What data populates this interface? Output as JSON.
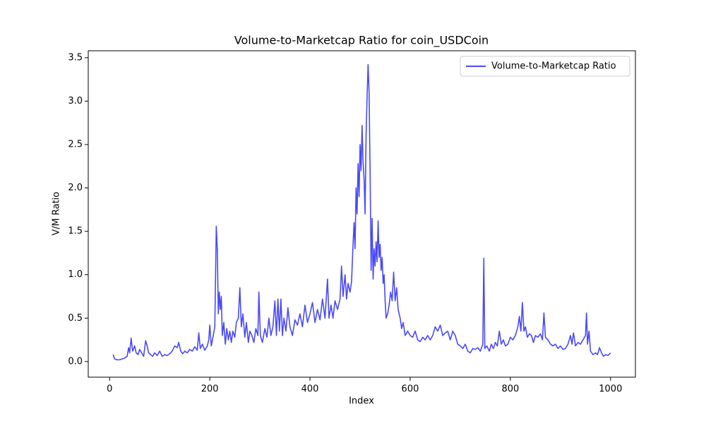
{
  "chart_data": {
    "type": "line",
    "title": "Volume-to-Marketcap Ratio for coin_USDCoin",
    "xlabel": "Index",
    "ylabel": "V/M Ratio",
    "xlim": [
      -42.6,
      1049.6
    ],
    "ylim": [
      -0.18,
      3.58
    ],
    "xticks": [
      0,
      200,
      400,
      600,
      800,
      1000
    ],
    "yticks": [
      {
        "value": 0,
        "label": "0.0"
      },
      0.5,
      {
        "value": 1,
        "label": "1.0"
      },
      1.5,
      {
        "value": 2,
        "label": "2.0"
      },
      2.5,
      {
        "value": 3,
        "label": "3.0"
      },
      3.5
    ],
    "legend": "upper right",
    "grid": false,
    "x": [
      7,
      10,
      15,
      20,
      25,
      30,
      35,
      38,
      40,
      43,
      46,
      50,
      53,
      57,
      60,
      64,
      68,
      72,
      75,
      78,
      82,
      86,
      90,
      95,
      100,
      105,
      110,
      115,
      120,
      125,
      130,
      135,
      138,
      142,
      146,
      150,
      155,
      160,
      165,
      170,
      175,
      178,
      181,
      185,
      190,
      195,
      198,
      200,
      203,
      207,
      210,
      213,
      215,
      217,
      219,
      221,
      223,
      225,
      228,
      231,
      234,
      237,
      240,
      243,
      246,
      250,
      253,
      257,
      260,
      263,
      266,
      270,
      273,
      277,
      280,
      284,
      288,
      292,
      296,
      298,
      301,
      305,
      310,
      314,
      318,
      322,
      326,
      330,
      333,
      336,
      339,
      342,
      345,
      348,
      352,
      356,
      360,
      365,
      370,
      375,
      380,
      385,
      390,
      395,
      400,
      405,
      410,
      415,
      420,
      425,
      430,
      435,
      438,
      442,
      446,
      450,
      455,
      460,
      463,
      466,
      470,
      473,
      476,
      480,
      483,
      486,
      488,
      490,
      492,
      494,
      496,
      498,
      500,
      502,
      504,
      506,
      508,
      510,
      512,
      514,
      516,
      518,
      520,
      522,
      524,
      526,
      528,
      530,
      532,
      534,
      536,
      538,
      540,
      542,
      544,
      546,
      548,
      550,
      552,
      555,
      558,
      561,
      564,
      567,
      570,
      573,
      576,
      580,
      583,
      586,
      590,
      595,
      600,
      605,
      610,
      615,
      620,
      625,
      630,
      635,
      640,
      645,
      650,
      655,
      660,
      665,
      670,
      675,
      680,
      685,
      690,
      695,
      700,
      705,
      710,
      715,
      720,
      725,
      730,
      735,
      740,
      745,
      747,
      749,
      753,
      758,
      762,
      766,
      770,
      774,
      778,
      782,
      786,
      790,
      795,
      800,
      805,
      810,
      815,
      818,
      821,
      824,
      827,
      830,
      834,
      838,
      842,
      846,
      850,
      855,
      860,
      864,
      867,
      870,
      875,
      880,
      885,
      890,
      895,
      900,
      905,
      910,
      915,
      920,
      923,
      926,
      930,
      935,
      940,
      945,
      950,
      952,
      954,
      957,
      960,
      965,
      970,
      974,
      978,
      982,
      986,
      990,
      995,
      1000
    ],
    "series": [
      {
        "name": "Volume-to-Marketcap Ratio",
        "color": "#4a4af5",
        "values": [
          0.08,
          0.03,
          0.02,
          0.02,
          0.03,
          0.04,
          0.06,
          0.16,
          0.1,
          0.27,
          0.12,
          0.18,
          0.1,
          0.08,
          0.14,
          0.1,
          0.06,
          0.24,
          0.18,
          0.1,
          0.08,
          0.06,
          0.1,
          0.07,
          0.12,
          0.06,
          0.08,
          0.07,
          0.09,
          0.12,
          0.18,
          0.16,
          0.22,
          0.12,
          0.09,
          0.12,
          0.1,
          0.14,
          0.12,
          0.17,
          0.13,
          0.33,
          0.15,
          0.2,
          0.13,
          0.18,
          0.25,
          0.42,
          0.18,
          0.3,
          0.4,
          1.56,
          1.3,
          0.55,
          0.8,
          0.6,
          0.75,
          0.3,
          0.45,
          0.2,
          0.38,
          0.25,
          0.35,
          0.22,
          0.35,
          0.28,
          0.45,
          0.5,
          0.85,
          0.4,
          0.55,
          0.28,
          0.45,
          0.22,
          0.35,
          0.3,
          0.22,
          0.38,
          0.3,
          0.8,
          0.3,
          0.22,
          0.38,
          0.28,
          0.5,
          0.3,
          0.4,
          0.7,
          0.3,
          0.72,
          0.35,
          0.72,
          0.3,
          0.5,
          0.35,
          0.62,
          0.4,
          0.3,
          0.48,
          0.42,
          0.55,
          0.4,
          0.65,
          0.45,
          0.55,
          0.68,
          0.45,
          0.6,
          0.48,
          0.72,
          0.5,
          0.95,
          0.5,
          0.65,
          0.5,
          0.7,
          0.6,
          0.72,
          1.1,
          0.75,
          1.0,
          0.72,
          0.9,
          0.8,
          0.92,
          1.35,
          1.6,
          1.3,
          2.0,
          1.7,
          2.28,
          1.9,
          2.5,
          2.2,
          2.72,
          2.3,
          2.1,
          1.7,
          2.6,
          3.05,
          3.42,
          3.1,
          2.2,
          1.05,
          1.65,
          0.95,
          1.3,
          1.1,
          1.38,
          1.15,
          1.62,
          1.2,
          1.35,
          1.05,
          1.2,
          0.9,
          1.0,
          0.7,
          0.5,
          0.55,
          0.65,
          0.8,
          0.7,
          1.03,
          0.7,
          0.85,
          0.6,
          0.5,
          0.38,
          0.45,
          0.3,
          0.35,
          0.3,
          0.28,
          0.35,
          0.25,
          0.23,
          0.28,
          0.25,
          0.3,
          0.25,
          0.3,
          0.4,
          0.35,
          0.42,
          0.3,
          0.33,
          0.35,
          0.25,
          0.35,
          0.3,
          0.2,
          0.18,
          0.15,
          0.2,
          0.12,
          0.1,
          0.15,
          0.14,
          0.16,
          0.12,
          0.2,
          1.19,
          0.15,
          0.18,
          0.12,
          0.2,
          0.15,
          0.22,
          0.18,
          0.35,
          0.2,
          0.25,
          0.18,
          0.2,
          0.28,
          0.25,
          0.3,
          0.4,
          0.52,
          0.35,
          0.68,
          0.35,
          0.4,
          0.28,
          0.32,
          0.3,
          0.22,
          0.3,
          0.28,
          0.32,
          0.25,
          0.56,
          0.28,
          0.25,
          0.2,
          0.18,
          0.2,
          0.15,
          0.18,
          0.14,
          0.15,
          0.2,
          0.3,
          0.2,
          0.33,
          0.18,
          0.22,
          0.2,
          0.25,
          0.3,
          0.56,
          0.2,
          0.35,
          0.12,
          0.08,
          0.1,
          0.08,
          0.16,
          0.1,
          0.06,
          0.08,
          0.07,
          0.1
        ]
      }
    ]
  }
}
